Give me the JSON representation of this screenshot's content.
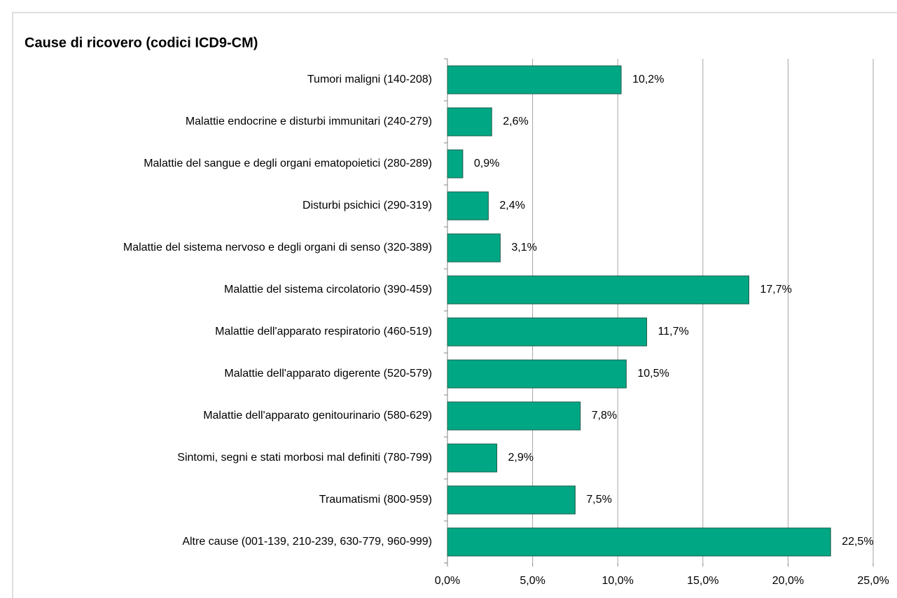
{
  "chart_data": {
    "type": "bar",
    "orientation": "horizontal",
    "title": "Cause di ricovero (codici ICD9-CM)",
    "categories": [
      "Tumori maligni (140-208)",
      "Malattie endocrine e disturbi immunitari (240-279)",
      "Malattie del sangue e degli organi ematopoietici (280-289)",
      "Disturbi psichici (290-319)",
      "Malattie del sistema nervoso e degli organi di senso (320-389)",
      "Malattie del sistema circolatorio (390-459)",
      "Malattie dell'apparato respiratorio (460-519)",
      "Malattie dell'apparato digerente (520-579)",
      "Malattie dell'apparato genitourinario (580-629)",
      "Sintomi, segni e stati morbosi mal definiti (780-799)",
      "Traumatismi (800-959)",
      "Altre cause (001-139, 210-239, 630-779, 960-999)"
    ],
    "values": [
      10.2,
      2.6,
      0.9,
      2.4,
      3.1,
      17.7,
      11.7,
      10.5,
      7.8,
      2.9,
      7.5,
      22.5
    ],
    "value_labels": [
      "10,2%",
      "2,6%",
      "0,9%",
      "2,4%",
      "3,1%",
      "17,7%",
      "11,7%",
      "10,5%",
      "7,8%",
      "2,9%",
      "7,5%",
      "22,5%"
    ],
    "color": "#00a785",
    "xlim": [
      0,
      25
    ],
    "xticks": [
      {
        "value": 0,
        "label": "0,0%"
      },
      {
        "value": 5,
        "label": "5,0%"
      },
      {
        "value": 10,
        "label": "10,0%"
      },
      {
        "value": 15,
        "label": "15,0%"
      },
      {
        "value": 20,
        "label": "20,0%"
      },
      {
        "value": 25,
        "label": "25,0%"
      }
    ],
    "grid": true
  }
}
